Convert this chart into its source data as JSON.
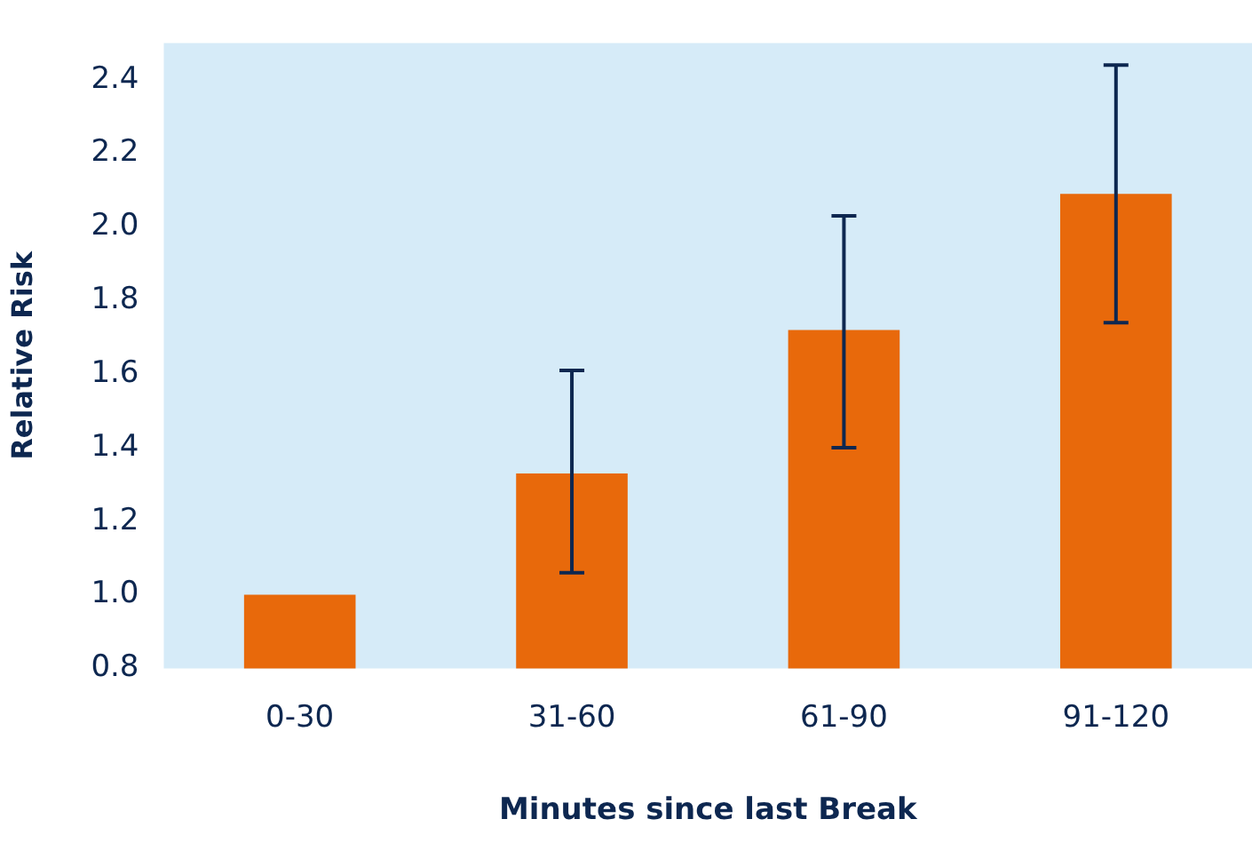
{
  "chart_data": {
    "type": "bar",
    "xlabel": "Minutes since last Break",
    "ylabel": "Relative Risk",
    "categories": [
      "0-30",
      "31-60",
      "61-90",
      "91-120"
    ],
    "values": [
      1.0,
      1.33,
      1.72,
      2.09
    ],
    "errors": [
      null,
      [
        1.06,
        1.61
      ],
      [
        1.4,
        2.03
      ],
      [
        1.74,
        2.44
      ]
    ],
    "color": "#e8690b",
    "ylim": [
      0.8,
      2.5
    ],
    "yticks": [
      0.8,
      {
        "value": 1,
        "label": "1.0"
      },
      1.2,
      1.4,
      1.6,
      1.8,
      {
        "value": 2,
        "label": "2.0"
      },
      2.2,
      2.4
    ],
    "grid": false,
    "legend": false
  }
}
